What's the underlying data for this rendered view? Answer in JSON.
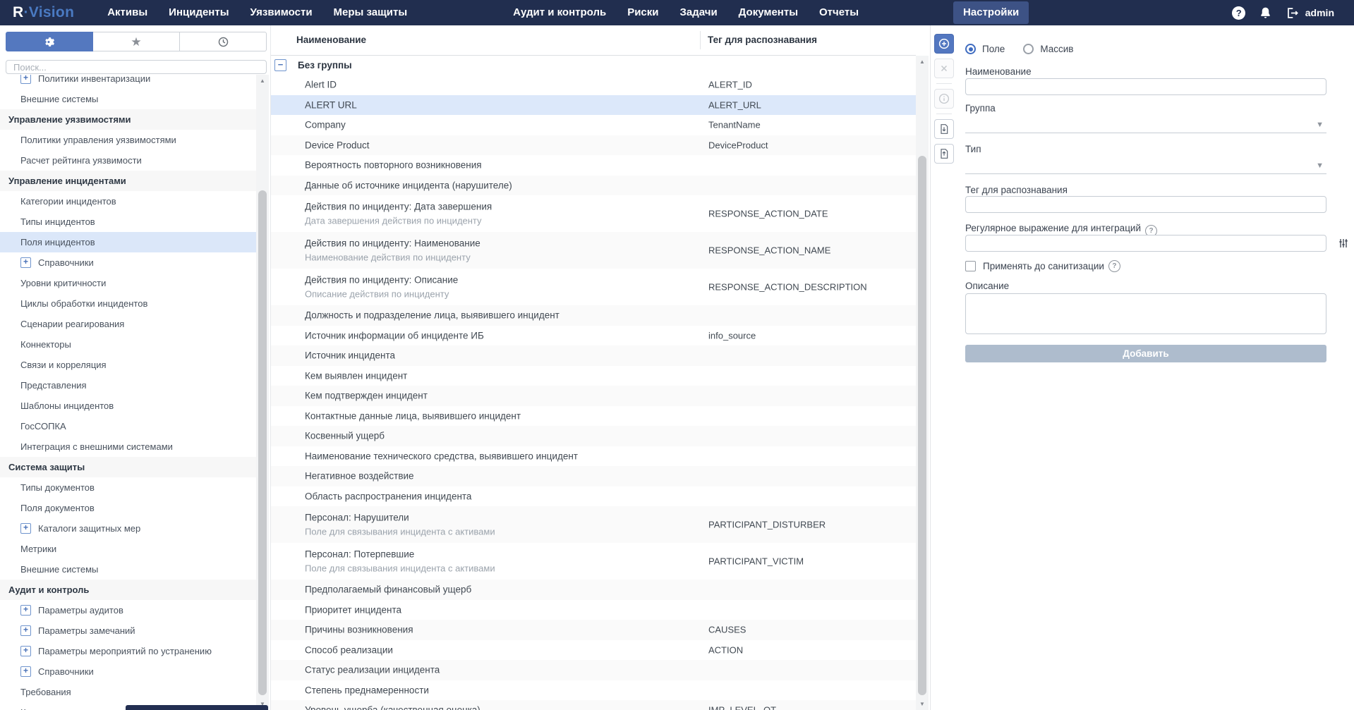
{
  "nav": {
    "logo": {
      "prefix": "R",
      "suffix": "·Vision"
    },
    "items": [
      {
        "label": "Активы"
      },
      {
        "label": "Инциденты"
      },
      {
        "label": "Уязвимости"
      },
      {
        "label": "Меры защиты"
      },
      {
        "label": "Аудит и контроль"
      },
      {
        "label": "Риски"
      },
      {
        "label": "Задачи"
      },
      {
        "label": "Документы"
      },
      {
        "label": "Отчеты"
      },
      {
        "label": "Настройки",
        "active": true
      }
    ],
    "user": "admin"
  },
  "sidebar": {
    "search_placeholder": "Поиск...",
    "tabs": [
      "settings",
      "favorites",
      "history"
    ],
    "items": [
      {
        "label": "Политики инвентаризации",
        "kind": "item",
        "expandable": true,
        "clipped": true
      },
      {
        "label": "Внешние системы",
        "kind": "item"
      },
      {
        "label": "Управление уязвимостями",
        "kind": "section"
      },
      {
        "label": "Политики управления уязвимостями",
        "kind": "item"
      },
      {
        "label": "Расчет рейтинга уязвимости",
        "kind": "item"
      },
      {
        "label": "Управление инцидентами",
        "kind": "section"
      },
      {
        "label": "Категории инцидентов",
        "kind": "item"
      },
      {
        "label": "Типы инцидентов",
        "kind": "item"
      },
      {
        "label": "Поля инцидентов",
        "kind": "item",
        "selected": true
      },
      {
        "label": "Справочники",
        "kind": "item",
        "expandable": true
      },
      {
        "label": "Уровни критичности",
        "kind": "item"
      },
      {
        "label": "Циклы обработки инцидентов",
        "kind": "item"
      },
      {
        "label": "Сценарии реагирования",
        "kind": "item"
      },
      {
        "label": "Коннекторы",
        "kind": "item"
      },
      {
        "label": "Связи и корреляция",
        "kind": "item"
      },
      {
        "label": "Представления",
        "kind": "item"
      },
      {
        "label": "Шаблоны инцидентов",
        "kind": "item"
      },
      {
        "label": "ГосСОПКА",
        "kind": "item"
      },
      {
        "label": "Интеграция с внешними системами",
        "kind": "item"
      },
      {
        "label": "Система защиты",
        "kind": "section"
      },
      {
        "label": "Типы документов",
        "kind": "item"
      },
      {
        "label": "Поля документов",
        "kind": "item"
      },
      {
        "label": "Каталоги защитных мер",
        "kind": "item",
        "expandable": true
      },
      {
        "label": "Метрики",
        "kind": "item"
      },
      {
        "label": "Внешние системы",
        "kind": "item"
      },
      {
        "label": "Аудит и контроль",
        "kind": "section"
      },
      {
        "label": "Параметры аудитов",
        "kind": "item",
        "expandable": true
      },
      {
        "label": "Параметры замечаний",
        "kind": "item",
        "expandable": true
      },
      {
        "label": "Параметры мероприятий по устранению",
        "kind": "item",
        "expandable": true
      },
      {
        "label": "Справочники",
        "kind": "item",
        "expandable": true
      },
      {
        "label": "Требования",
        "kind": "item"
      },
      {
        "label": "Контрольные проверки",
        "kind": "item"
      }
    ]
  },
  "table": {
    "columns": [
      "Наименование",
      "Тег для распознавания"
    ],
    "group": {
      "label": "Без группы",
      "expanded": true,
      "collapse_glyph": "−"
    },
    "rows": [
      {
        "name": "Alert ID",
        "tag": "ALERT_ID"
      },
      {
        "name": "ALERT URL",
        "tag": "ALERT_URL",
        "selected": true
      },
      {
        "name": "Company",
        "tag": "TenantName"
      },
      {
        "name": "Device Product",
        "tag": "DeviceProduct"
      },
      {
        "name": "Вероятность повторного возникновения"
      },
      {
        "name": "Данные об источнике инцидента (нарушителе)"
      },
      {
        "name": "Действия по инциденту: Дата завершения",
        "subtitle": "Дата завершения действия по инциденту",
        "tag": "RESPONSE_ACTION_DATE"
      },
      {
        "name": "Действия по инциденту: Наименование",
        "subtitle": "Наименование действия по инциденту",
        "tag": "RESPONSE_ACTION_NAME"
      },
      {
        "name": "Действия по инциденту: Описание",
        "subtitle": "Описание действия по инциденту",
        "tag": "RESPONSE_ACTION_DESCRIPTION"
      },
      {
        "name": "Должность и подразделение лица, выявившего инцидент"
      },
      {
        "name": "Источник информации об инциденте ИБ",
        "tag": "info_source"
      },
      {
        "name": "Источник инцидента"
      },
      {
        "name": "Кем выявлен инцидент"
      },
      {
        "name": "Кем подтвержден инцидент"
      },
      {
        "name": "Контактные данные лица, выявившего инцидент"
      },
      {
        "name": "Косвенный ущерб"
      },
      {
        "name": "Наименование технического средства, выявившего инцидент"
      },
      {
        "name": "Негативное воздействие"
      },
      {
        "name": "Область распространения инцидента"
      },
      {
        "name": "Персонал: Нарушители",
        "subtitle": "Поле для связывания инцидента с активами",
        "tag": "PARTICIPANT_DISTURBER"
      },
      {
        "name": "Персонал: Потерпевшие",
        "subtitle": "Поле для связывания инцидента с активами",
        "tag": "PARTICIPANT_VICTIM"
      },
      {
        "name": "Предполагаемый финансовый ущерб"
      },
      {
        "name": "Приоритет инцидента"
      },
      {
        "name": "Причины возникновения",
        "tag": "CAUSES"
      },
      {
        "name": "Способ реализации",
        "tag": "ACTION"
      },
      {
        "name": "Статус реализации инцидента"
      },
      {
        "name": "Степень преднамеренности"
      },
      {
        "name": "Уровень ущерба (качественная оценка)",
        "tag": "IMP_LEVEL_QT"
      }
    ]
  },
  "toolbar": {
    "buttons": [
      "add-field",
      "delete",
      "info",
      "import-document",
      "export-document"
    ]
  },
  "form": {
    "radios": [
      {
        "label": "Поле",
        "selected": true
      },
      {
        "label": "Массив",
        "selected": false
      }
    ],
    "name_label": "Наименование",
    "name_value": "",
    "group_label": "Группа",
    "group_value": "",
    "type_label": "Тип",
    "type_value": "",
    "tag_label": "Тег для распознавания",
    "tag_value": "",
    "regex_label": "Регулярное выражение для интеграций",
    "regex_value": "",
    "sanitize_label": "Применять до санитизации",
    "sanitize_checked": false,
    "description_label": "Описание",
    "description_value": "",
    "submit_label": "Добавить"
  },
  "icons": {
    "tabs": [
      "gear-icon",
      "star-icon",
      "history-icon"
    ],
    "nav_right": [
      "help-circle-icon",
      "bell-icon",
      "logout-icon"
    ],
    "toolbar": [
      "add-circle-icon",
      "close-icon",
      "info-icon",
      "import-doc-icon",
      "export-doc-icon"
    ],
    "form": [
      "chevron-down-icon",
      "help-circle-icon",
      "sliders-icon"
    ]
  },
  "colors": {
    "nav_bg": "#212e4f",
    "nav_active_bg": "#3d5285",
    "logo_accent": "#4a7ac2",
    "accent_blue": "#5377c0",
    "selection_bg": "#dce8fa",
    "stripe_bg": "#fafafa",
    "section_bg": "#f7f7f7",
    "submit_button_bg": "#aebccd",
    "text_dark": "#3c454f",
    "text_muted": "#9ba3ac"
  }
}
